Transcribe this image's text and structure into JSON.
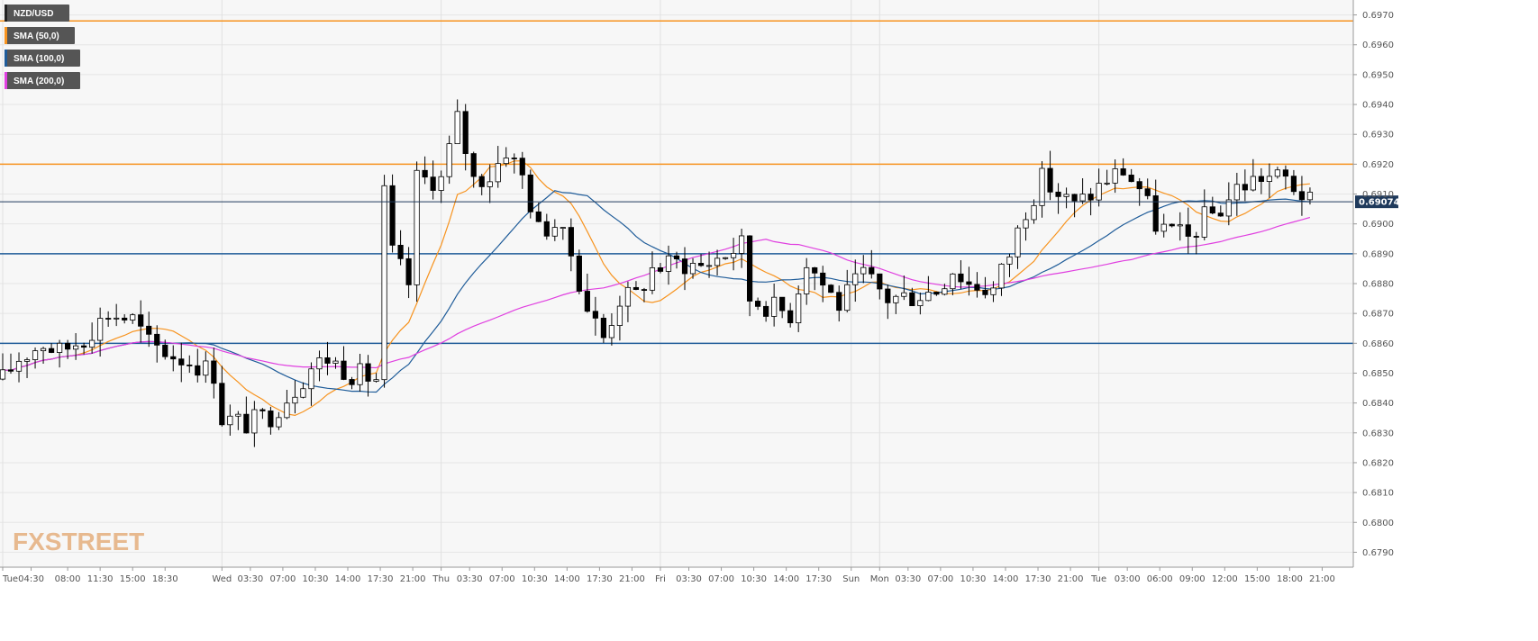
{
  "chart_data": {
    "type": "candlestick",
    "symbol": "NZD/USD",
    "price_format_decimals": 4,
    "ylim": [
      0.6785,
      0.6975
    ],
    "y_ticks": [
      0.697,
      0.696,
      0.695,
      0.694,
      0.693,
      0.692,
      0.691,
      0.69,
      0.689,
      0.688,
      0.687,
      0.686,
      0.685,
      0.684,
      0.683,
      0.682,
      0.681,
      0.68,
      0.679
    ],
    "y_tick_labels": [
      "0.6970",
      "0.6960",
      "0.6950",
      "0.6940",
      "0.6930",
      "0.6920",
      "0.6910",
      "0.6900",
      "0.6890",
      "0.6880",
      "0.6870",
      "0.6860",
      "0.6850",
      "0.6840",
      "0.6830",
      "0.6820",
      "0.6810",
      "0.6800",
      "0.6790"
    ],
    "x_range": [
      0,
      166
    ],
    "x_ticks": [
      {
        "x": 0,
        "label": "Tue"
      },
      {
        "x": 3.5,
        "label": "04:30"
      },
      {
        "x": 8,
        "label": "08:00"
      },
      {
        "x": 12,
        "label": "11:30"
      },
      {
        "x": 16,
        "label": "15:00"
      },
      {
        "x": 20,
        "label": "18:30"
      },
      {
        "x": 27,
        "label": "Wed"
      },
      {
        "x": 30.5,
        "label": "03:30"
      },
      {
        "x": 34.5,
        "label": "07:00"
      },
      {
        "x": 38.5,
        "label": "10:30"
      },
      {
        "x": 42.5,
        "label": "14:00"
      },
      {
        "x": 46.5,
        "label": "17:30"
      },
      {
        "x": 50.5,
        "label": "21:00"
      },
      {
        "x": 54,
        "label": "Thu"
      },
      {
        "x": 57.5,
        "label": "03:30"
      },
      {
        "x": 61.5,
        "label": "07:00"
      },
      {
        "x": 65.5,
        "label": "10:30"
      },
      {
        "x": 69.5,
        "label": "14:00"
      },
      {
        "x": 73.5,
        "label": "17:30"
      },
      {
        "x": 77.5,
        "label": "21:00"
      },
      {
        "x": 81,
        "label": "Fri"
      },
      {
        "x": 84.5,
        "label": "03:30"
      },
      {
        "x": 88.5,
        "label": "07:00"
      },
      {
        "x": 92.5,
        "label": "10:30"
      },
      {
        "x": 96.5,
        "label": "14:00"
      },
      {
        "x": 100.5,
        "label": "17:30"
      },
      {
        "x": 104.5,
        "label": "Sun"
      },
      {
        "x": 108,
        "label": "Mon"
      },
      {
        "x": 111.5,
        "label": "03:30"
      },
      {
        "x": 115.5,
        "label": "07:00"
      },
      {
        "x": 119.5,
        "label": "10:30"
      },
      {
        "x": 123.5,
        "label": "14:00"
      },
      {
        "x": 127.5,
        "label": "17:30"
      },
      {
        "x": 131.5,
        "label": "21:00"
      },
      {
        "x": 135,
        "label": "Tue"
      },
      {
        "x": 138.5,
        "label": "03:00"
      },
      {
        "x": 142.5,
        "label": "06:00"
      },
      {
        "x": 146.5,
        "label": "09:00"
      },
      {
        "x": 150.5,
        "label": "12:00"
      },
      {
        "x": 154.5,
        "label": "15:00"
      },
      {
        "x": 158.5,
        "label": "18:00"
      },
      {
        "x": 162.5,
        "label": "21:00"
      }
    ],
    "day_separators": [
      0,
      27,
      54,
      81,
      104.5,
      108,
      135
    ],
    "horizontal_levels": [
      {
        "price": 0.6968,
        "color": "#f7931e"
      },
      {
        "price": 0.692,
        "color": "#f7931e"
      },
      {
        "price": 0.689,
        "color": "#1f5c99"
      },
      {
        "price": 0.686,
        "color": "#1f5c99"
      }
    ],
    "current_price": {
      "price": 0.69074,
      "label": "0.69074",
      "line_color": "#1f3a5c"
    },
    "legend": [
      {
        "label": "NZD/USD",
        "swatch": "#222222"
      },
      {
        "label": "SMA (50,0)",
        "swatch": "#f7931e"
      },
      {
        "label": "SMA (100,0)",
        "swatch": "#1f5c99"
      },
      {
        "label": "SMA (200,0)",
        "swatch": "#e040e0"
      }
    ],
    "path_anchors": [
      [
        0,
        0.6848
      ],
      [
        2,
        0.6855
      ],
      [
        5,
        0.686
      ],
      [
        7,
        0.6857
      ],
      [
        10,
        0.6862
      ],
      [
        13,
        0.687
      ],
      [
        16,
        0.6868
      ],
      [
        18,
        0.686
      ],
      [
        21,
        0.6856
      ],
      [
        24,
        0.6853
      ],
      [
        26,
        0.685
      ],
      [
        27,
        0.6835
      ],
      [
        30,
        0.6833
      ],
      [
        33,
        0.6836
      ],
      [
        36,
        0.6845
      ],
      [
        38,
        0.6852
      ],
      [
        40,
        0.6855
      ],
      [
        43,
        0.685
      ],
      [
        46,
        0.6848
      ],
      [
        47,
        0.691
      ],
      [
        48,
        0.689
      ],
      [
        50,
        0.688
      ],
      [
        51,
        0.6915
      ],
      [
        54,
        0.6915
      ],
      [
        56,
        0.6935
      ],
      [
        58,
        0.6915
      ],
      [
        60,
        0.6916
      ],
      [
        62,
        0.6925
      ],
      [
        64,
        0.6916
      ],
      [
        66,
        0.6898
      ],
      [
        68,
        0.69
      ],
      [
        70,
        0.689
      ],
      [
        72,
        0.6872
      ],
      [
        74,
        0.6862
      ],
      [
        76,
        0.6875
      ],
      [
        78,
        0.6876
      ],
      [
        80,
        0.6885
      ],
      [
        83,
        0.6887
      ],
      [
        86,
        0.6886
      ],
      [
        89,
        0.689
      ],
      [
        91,
        0.6893
      ],
      [
        92,
        0.6875
      ],
      [
        95,
        0.6872
      ],
      [
        97,
        0.687
      ],
      [
        99,
        0.6888
      ],
      [
        101,
        0.688
      ],
      [
        103,
        0.6873
      ],
      [
        106,
        0.6883
      ],
      [
        109,
        0.6875
      ],
      [
        112,
        0.6876
      ],
      [
        115,
        0.6878
      ],
      [
        117,
        0.6885
      ],
      [
        119,
        0.688
      ],
      [
        122,
        0.6878
      ],
      [
        124,
        0.689
      ],
      [
        126,
        0.6905
      ],
      [
        128,
        0.6915
      ],
      [
        130,
        0.691
      ],
      [
        132,
        0.6906
      ],
      [
        134,
        0.691
      ],
      [
        136,
        0.6915
      ],
      [
        138,
        0.6918
      ],
      [
        140,
        0.6912
      ],
      [
        142,
        0.69
      ],
      [
        144,
        0.6897
      ],
      [
        146,
        0.6895
      ],
      [
        148,
        0.6902
      ],
      [
        150,
        0.6905
      ],
      [
        152,
        0.6912
      ],
      [
        155,
        0.6916
      ],
      [
        158,
        0.6915
      ],
      [
        160,
        0.691
      ],
      [
        161,
        0.6907
      ]
    ],
    "candle_count": 162,
    "sma_periods": [
      50,
      100,
      200
    ]
  },
  "watermark": "FXSTREET"
}
